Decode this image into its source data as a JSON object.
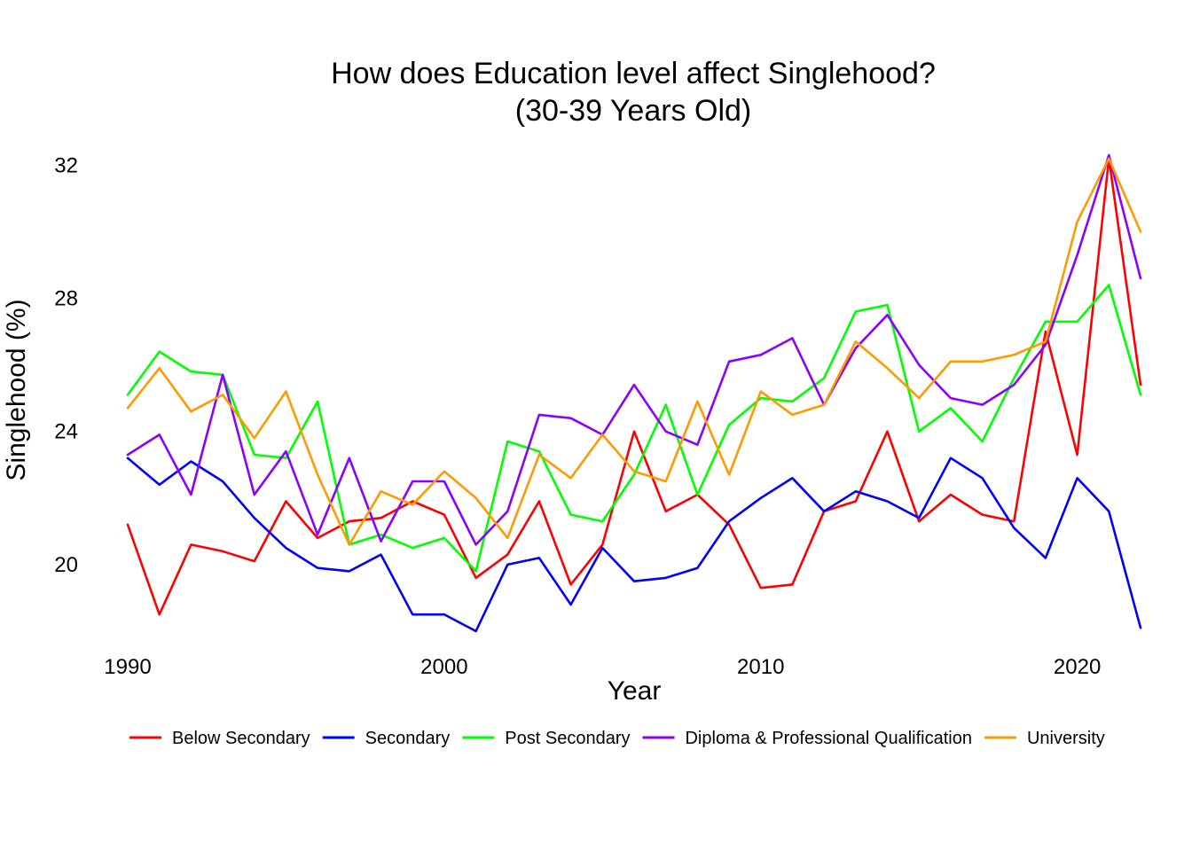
{
  "chart_data": {
    "type": "line",
    "title_line1": "How does Education level affect Singlehood?",
    "title_line2": "(30-39 Years Old)",
    "xlabel": "Year",
    "ylabel": "Singlehood (%)",
    "x_ticks": [
      1990,
      2000,
      2010,
      2020
    ],
    "y_ticks": [
      20,
      24,
      28,
      32
    ],
    "xlim": [
      1990,
      2022
    ],
    "ylim": [
      18.0,
      32.3
    ],
    "grid": false,
    "legend_position": "bottom",
    "x": [
      1990,
      1991,
      1992,
      1993,
      1994,
      1995,
      1996,
      1997,
      1998,
      1999,
      2000,
      2001,
      2002,
      2003,
      2004,
      2005,
      2006,
      2007,
      2008,
      2009,
      2010,
      2011,
      2012,
      2013,
      2014,
      2015,
      2016,
      2017,
      2018,
      2019,
      2020,
      2021,
      2022
    ],
    "series": [
      {
        "name": "Below Secondary",
        "color": "#ff0000",
        "values": [
          21.2,
          18.5,
          20.6,
          20.4,
          20.1,
          21.9,
          20.8,
          21.3,
          21.4,
          21.9,
          21.5,
          19.6,
          20.3,
          21.9,
          19.4,
          20.6,
          24.0,
          21.6,
          22.1,
          21.2,
          19.3,
          19.4,
          21.6,
          21.9,
          24.0,
          21.3,
          22.1,
          21.5,
          21.3,
          27.0,
          23.3,
          32.2,
          25.4
        ]
      },
      {
        "name": "Secondary",
        "color": "#0000ff",
        "values": [
          23.2,
          22.4,
          23.1,
          22.5,
          21.4,
          20.5,
          19.9,
          19.8,
          20.3,
          18.5,
          18.5,
          18.0,
          20.0,
          20.2,
          18.8,
          20.5,
          19.5,
          19.6,
          19.9,
          21.3,
          22.0,
          22.6,
          21.6,
          22.2,
          21.9,
          21.4,
          23.2,
          22.6,
          21.1,
          20.2,
          22.6,
          21.6,
          18.1
        ]
      },
      {
        "name": "Post Secondary",
        "color": "#00ff00",
        "values": [
          25.1,
          26.4,
          25.8,
          25.7,
          23.3,
          23.2,
          24.9,
          20.6,
          20.9,
          20.5,
          20.8,
          19.8,
          23.7,
          23.4,
          21.5,
          21.3,
          22.7,
          24.8,
          22.1,
          24.2,
          25.0,
          24.9,
          25.6,
          27.6,
          27.8,
          24.0,
          24.7,
          23.7,
          25.6,
          27.3,
          27.3,
          28.4,
          25.1
        ]
      },
      {
        "name": "Diploma & Professional Qualification",
        "color": "#8b00ff",
        "values": [
          23.3,
          23.9,
          22.1,
          25.7,
          22.1,
          23.4,
          20.9,
          23.2,
          20.7,
          22.5,
          22.5,
          20.6,
          21.6,
          24.5,
          24.4,
          23.9,
          25.4,
          24.0,
          23.6,
          26.1,
          26.3,
          26.8,
          24.8,
          26.5,
          27.5,
          26.0,
          25.0,
          24.8,
          25.4,
          26.6,
          29.3,
          32.3,
          28.6
        ]
      },
      {
        "name": "University",
        "color": "#ff9a00",
        "values": [
          24.7,
          25.9,
          24.6,
          25.1,
          23.8,
          25.2,
          22.7,
          20.6,
          22.2,
          21.8,
          22.8,
          22.0,
          20.8,
          23.3,
          22.6,
          23.9,
          22.8,
          22.5,
          24.9,
          22.7,
          25.2,
          24.5,
          24.8,
          26.7,
          25.9,
          25.0,
          26.1,
          26.1,
          26.3,
          26.7,
          30.3,
          32.2,
          30.0
        ]
      }
    ]
  }
}
